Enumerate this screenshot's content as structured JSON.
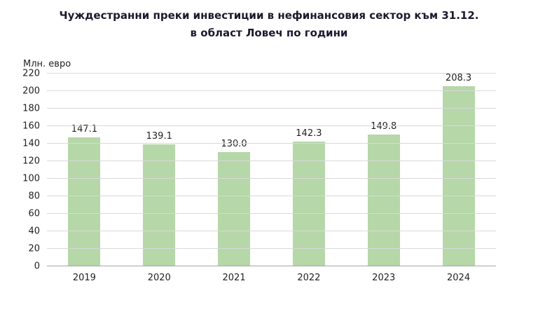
{
  "chart": {
    "title_line1": "Чуждестранни преки инвестиции в нефинансовия сектор към 31.12.",
    "title_line2": "в област Ловеч по години"
  },
  "chart_data": {
    "type": "bar",
    "title": "Чуждестранни преки инвестиции в нефинансовия сектор към 31.12. в област Ловеч по години",
    "categories": [
      "2019",
      "2020",
      "2021",
      "2022",
      "2023",
      "2024"
    ],
    "values": [
      147.1,
      139.1,
      130.0,
      142.3,
      149.8,
      208.3
    ],
    "value_labels": [
      "147.1",
      "139.1",
      "130.0",
      "142.3",
      "149.8",
      "208.3"
    ],
    "xlabel": "",
    "ylabel": "Млн. евро",
    "ylim": [
      0,
      220
    ],
    "ytick_step": 20,
    "grid": true,
    "legend": "none",
    "bar_color": "#b6d7a8"
  }
}
